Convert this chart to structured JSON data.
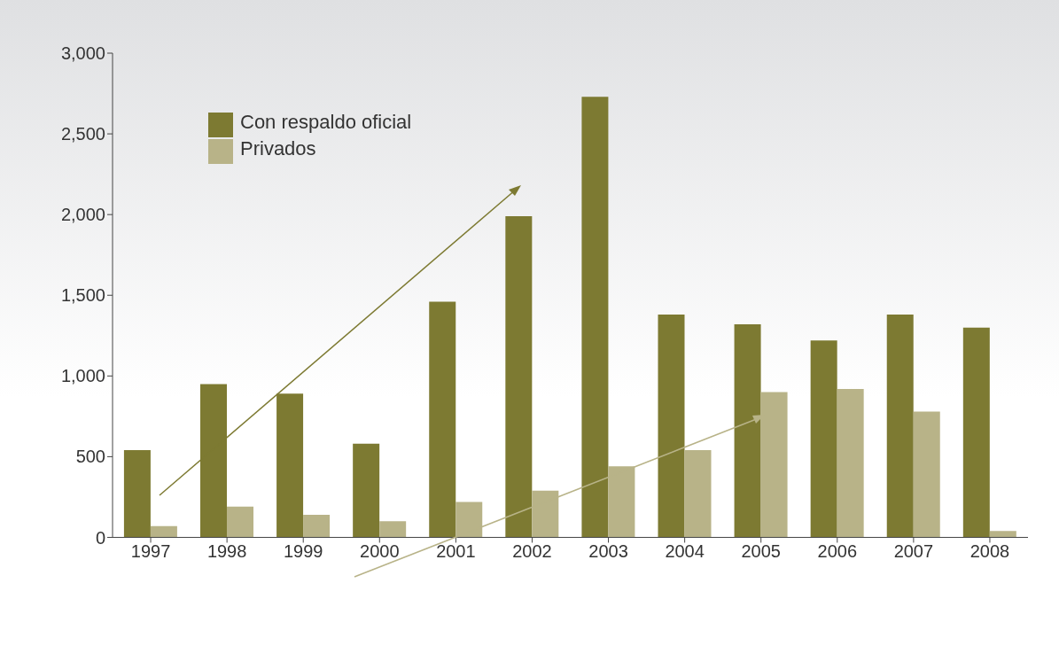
{
  "chart_data": {
    "type": "bar",
    "categories": [
      "1997",
      "1998",
      "1999",
      "2000",
      "2001",
      "2002",
      "2003",
      "2004",
      "2005",
      "2006",
      "2007",
      "2008"
    ],
    "series": [
      {
        "name": "Con respaldo oficial",
        "color": "#7d7a32",
        "values": [
          540,
          950,
          890,
          580,
          1460,
          1990,
          2730,
          1380,
          1320,
          1220,
          1380,
          1300
        ]
      },
      {
        "name": "Privados",
        "color": "#b8b388",
        "values": [
          70,
          190,
          140,
          100,
          220,
          290,
          440,
          540,
          900,
          920,
          780,
          40
        ]
      }
    ],
    "ylim": [
      0,
      3000
    ],
    "yticks": [
      0,
      500,
      {
        "value": 1000,
        "label": "1,000"
      },
      {
        "value": 1500,
        "label": "1,500"
      },
      {
        "value": 2000,
        "label": "2,000"
      },
      {
        "value": 2500,
        "label": "2,500"
      },
      {
        "value": 3000,
        "label": "3,000"
      }
    ],
    "grid": false,
    "legend": "top left"
  }
}
